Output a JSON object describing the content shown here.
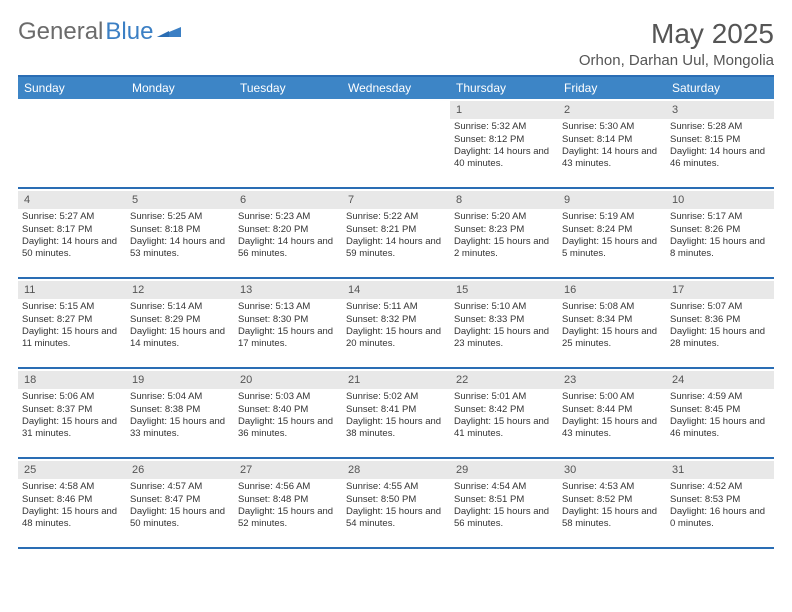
{
  "brand": {
    "word1": "General",
    "word2": "Blue",
    "logo_color": "#3b7fc4",
    "text_color": "#6b6b6b"
  },
  "title": "May 2025",
  "location": "Orhon, Darhan Uul, Mongolia",
  "colors": {
    "header_blue": "#3d85c6",
    "border_blue": "#2a6db4",
    "daynum_bg": "#e8e8e8",
    "text": "#333333",
    "muted": "#555555",
    "white": "#ffffff"
  },
  "weekdays": [
    "Sunday",
    "Monday",
    "Tuesday",
    "Wednesday",
    "Thursday",
    "Friday",
    "Saturday"
  ],
  "weeks": [
    [
      null,
      null,
      null,
      null,
      {
        "n": "1",
        "sunrise": "5:32 AM",
        "sunset": "8:12 PM",
        "daylight": "14 hours and 40 minutes."
      },
      {
        "n": "2",
        "sunrise": "5:30 AM",
        "sunset": "8:14 PM",
        "daylight": "14 hours and 43 minutes."
      },
      {
        "n": "3",
        "sunrise": "5:28 AM",
        "sunset": "8:15 PM",
        "daylight": "14 hours and 46 minutes."
      }
    ],
    [
      {
        "n": "4",
        "sunrise": "5:27 AM",
        "sunset": "8:17 PM",
        "daylight": "14 hours and 50 minutes."
      },
      {
        "n": "5",
        "sunrise": "5:25 AM",
        "sunset": "8:18 PM",
        "daylight": "14 hours and 53 minutes."
      },
      {
        "n": "6",
        "sunrise": "5:23 AM",
        "sunset": "8:20 PM",
        "daylight": "14 hours and 56 minutes."
      },
      {
        "n": "7",
        "sunrise": "5:22 AM",
        "sunset": "8:21 PM",
        "daylight": "14 hours and 59 minutes."
      },
      {
        "n": "8",
        "sunrise": "5:20 AM",
        "sunset": "8:23 PM",
        "daylight": "15 hours and 2 minutes."
      },
      {
        "n": "9",
        "sunrise": "5:19 AM",
        "sunset": "8:24 PM",
        "daylight": "15 hours and 5 minutes."
      },
      {
        "n": "10",
        "sunrise": "5:17 AM",
        "sunset": "8:26 PM",
        "daylight": "15 hours and 8 minutes."
      }
    ],
    [
      {
        "n": "11",
        "sunrise": "5:15 AM",
        "sunset": "8:27 PM",
        "daylight": "15 hours and 11 minutes."
      },
      {
        "n": "12",
        "sunrise": "5:14 AM",
        "sunset": "8:29 PM",
        "daylight": "15 hours and 14 minutes."
      },
      {
        "n": "13",
        "sunrise": "5:13 AM",
        "sunset": "8:30 PM",
        "daylight": "15 hours and 17 minutes."
      },
      {
        "n": "14",
        "sunrise": "5:11 AM",
        "sunset": "8:32 PM",
        "daylight": "15 hours and 20 minutes."
      },
      {
        "n": "15",
        "sunrise": "5:10 AM",
        "sunset": "8:33 PM",
        "daylight": "15 hours and 23 minutes."
      },
      {
        "n": "16",
        "sunrise": "5:08 AM",
        "sunset": "8:34 PM",
        "daylight": "15 hours and 25 minutes."
      },
      {
        "n": "17",
        "sunrise": "5:07 AM",
        "sunset": "8:36 PM",
        "daylight": "15 hours and 28 minutes."
      }
    ],
    [
      {
        "n": "18",
        "sunrise": "5:06 AM",
        "sunset": "8:37 PM",
        "daylight": "15 hours and 31 minutes."
      },
      {
        "n": "19",
        "sunrise": "5:04 AM",
        "sunset": "8:38 PM",
        "daylight": "15 hours and 33 minutes."
      },
      {
        "n": "20",
        "sunrise": "5:03 AM",
        "sunset": "8:40 PM",
        "daylight": "15 hours and 36 minutes."
      },
      {
        "n": "21",
        "sunrise": "5:02 AM",
        "sunset": "8:41 PM",
        "daylight": "15 hours and 38 minutes."
      },
      {
        "n": "22",
        "sunrise": "5:01 AM",
        "sunset": "8:42 PM",
        "daylight": "15 hours and 41 minutes."
      },
      {
        "n": "23",
        "sunrise": "5:00 AM",
        "sunset": "8:44 PM",
        "daylight": "15 hours and 43 minutes."
      },
      {
        "n": "24",
        "sunrise": "4:59 AM",
        "sunset": "8:45 PM",
        "daylight": "15 hours and 46 minutes."
      }
    ],
    [
      {
        "n": "25",
        "sunrise": "4:58 AM",
        "sunset": "8:46 PM",
        "daylight": "15 hours and 48 minutes."
      },
      {
        "n": "26",
        "sunrise": "4:57 AM",
        "sunset": "8:47 PM",
        "daylight": "15 hours and 50 minutes."
      },
      {
        "n": "27",
        "sunrise": "4:56 AM",
        "sunset": "8:48 PM",
        "daylight": "15 hours and 52 minutes."
      },
      {
        "n": "28",
        "sunrise": "4:55 AM",
        "sunset": "8:50 PM",
        "daylight": "15 hours and 54 minutes."
      },
      {
        "n": "29",
        "sunrise": "4:54 AM",
        "sunset": "8:51 PM",
        "daylight": "15 hours and 56 minutes."
      },
      {
        "n": "30",
        "sunrise": "4:53 AM",
        "sunset": "8:52 PM",
        "daylight": "15 hours and 58 minutes."
      },
      {
        "n": "31",
        "sunrise": "4:52 AM",
        "sunset": "8:53 PM",
        "daylight": "16 hours and 0 minutes."
      }
    ]
  ],
  "labels": {
    "sunrise": "Sunrise:",
    "sunset": "Sunset:",
    "daylight": "Daylight:"
  }
}
